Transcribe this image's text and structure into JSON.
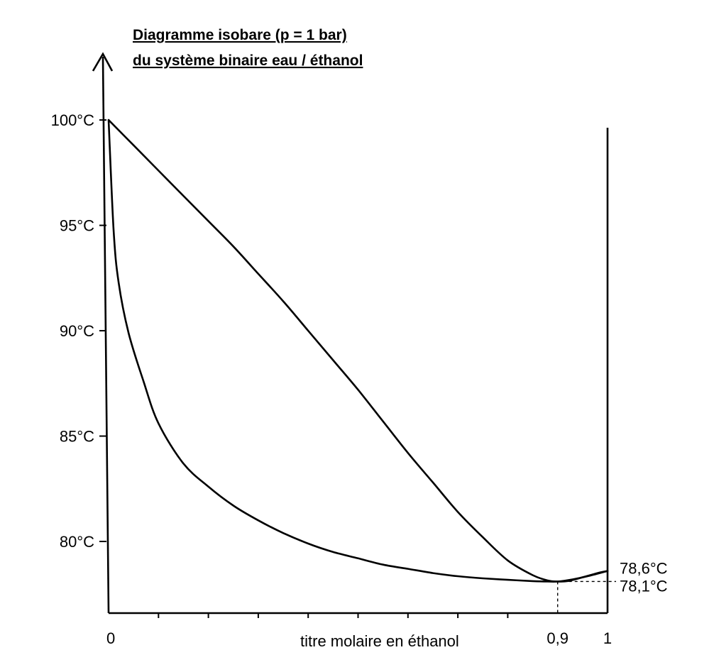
{
  "chart_data": {
    "type": "line",
    "title": "Diagramme isobare (p = 1 bar)",
    "subtitle": "du système binaire eau / éthanol",
    "xlabel": "titre molaire en éthanol",
    "ylabel": "",
    "xlim": [
      0,
      1
    ],
    "ylim": [
      76.6,
      103
    ],
    "x_tick_labels": [
      {
        "x": 0,
        "label": "0"
      },
      {
        "x": 0.9,
        "label": "0,9"
      },
      {
        "x": 1,
        "label": "1"
      }
    ],
    "x_minor_ticks": [
      0.1,
      0.2,
      0.3,
      0.4,
      0.5,
      0.6,
      0.7,
      0.8
    ],
    "y_tick_labels": [
      {
        "y": 100,
        "label": "100°C"
      },
      {
        "y": 95,
        "label": "95°C"
      },
      {
        "y": 90,
        "label": "90°C"
      },
      {
        "y": 85,
        "label": "85°C"
      },
      {
        "y": 80,
        "label": "80°C"
      }
    ],
    "annotations": [
      {
        "x": 1,
        "y": 78.6,
        "label": "78,6°C"
      },
      {
        "x": 1,
        "y": 78.1,
        "label": "78,1°C"
      }
    ],
    "azeotrope": {
      "x": 0.9,
      "y": 78.1
    },
    "grid": false,
    "series": [
      {
        "x": [
          0,
          0.01,
          0.02,
          0.04,
          0.07,
          0.1,
          0.15,
          0.2,
          0.25,
          0.3,
          0.35,
          0.4,
          0.45,
          0.5,
          0.55,
          0.6,
          0.65,
          0.7,
          0.75,
          0.8,
          0.85,
          0.88,
          0.9,
          0.93,
          0.96,
          1.0
        ],
        "y": [
          100,
          94.8,
          92.3,
          89.9,
          87.6,
          85.6,
          83.7,
          82.6,
          81.7,
          81.0,
          80.4,
          79.9,
          79.5,
          79.2,
          78.9,
          78.7,
          78.5,
          78.35,
          78.25,
          78.18,
          78.12,
          78.1,
          78.1,
          78.2,
          78.35,
          78.6
        ]
      },
      {
        "x": [
          0,
          0.05,
          0.1,
          0.15,
          0.2,
          0.25,
          0.3,
          0.35,
          0.4,
          0.45,
          0.5,
          0.55,
          0.6,
          0.65,
          0.7,
          0.75,
          0.8,
          0.85,
          0.88,
          0.9,
          0.92,
          0.95,
          0.98,
          1.0
        ],
        "y": [
          100,
          98.8,
          97.6,
          96.4,
          95.2,
          94.0,
          92.7,
          91.4,
          90.0,
          88.6,
          87.2,
          85.7,
          84.2,
          82.8,
          81.4,
          80.2,
          79.1,
          78.4,
          78.15,
          78.1,
          78.12,
          78.3,
          78.5,
          78.6
        ]
      }
    ]
  }
}
